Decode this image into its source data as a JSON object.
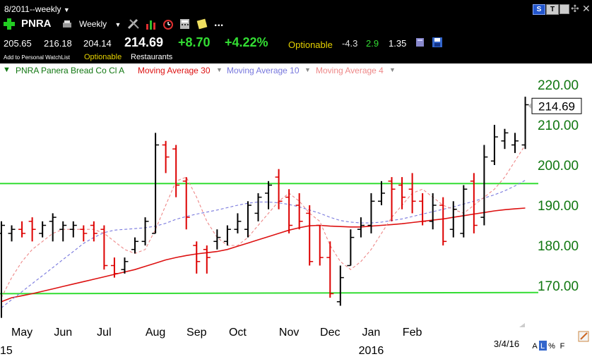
{
  "window": {
    "title": "8/2011--weekly",
    "controls": {
      "s_label": "S",
      "t_label": "T"
    }
  },
  "toolbar": {
    "symbol": "PNRA",
    "period": "Weekly",
    "more_label": "..."
  },
  "quote": {
    "open": "205.65",
    "high": "216.18",
    "low": "204.14",
    "last": "214.69",
    "change": "+8.70",
    "change_pct": "+4.22%",
    "optionable": "Optionable",
    "val1": "-4.3",
    "val2": "2.9",
    "val3": "1.35",
    "watchlist_label": "Add to Personal WatchList",
    "optionable2": "Optionable",
    "industry": "Restaurants"
  },
  "legend": {
    "series1": "PNRA Panera Bread Co Cl A",
    "series2": "Moving Average 30",
    "series3": "Moving Average 10",
    "series4": "Moving Average 4"
  },
  "colors": {
    "up": "#000000",
    "down": "#dd0000",
    "ma30": "#dd1111",
    "ma10": "#7777dd",
    "ma4": "#ee8888",
    "hline": "#33dd33",
    "yaxis": "#117711",
    "positive": "#33dd33",
    "optionable": "#e6d200"
  },
  "chart_data": {
    "type": "line",
    "title": "PNRA Panera Bread Co Cl A",
    "xlabel": "",
    "ylabel": "",
    "ylim": [
      163,
      222
    ],
    "yticks": [
      170,
      180,
      190,
      200,
      210,
      220
    ],
    "ytick_labels": [
      "170.00",
      "180.00",
      "190.00",
      "200.00",
      "210.00",
      "220.00"
    ],
    "last_price_label": "214.69",
    "x_month_labels": [
      {
        "label": "May",
        "week": 2
      },
      {
        "label": "Jun",
        "week": 6
      },
      {
        "label": "Jul",
        "week": 10
      },
      {
        "label": "Aug",
        "week": 15
      },
      {
        "label": "Sep",
        "week": 19
      },
      {
        "label": "Oct",
        "week": 23
      },
      {
        "label": "Nov",
        "week": 28
      },
      {
        "label": "Dec",
        "week": 32
      },
      {
        "label": "Jan",
        "week": 36
      },
      {
        "label": "Feb",
        "week": 40
      }
    ],
    "x_year_labels": [
      {
        "label": "15",
        "week": 0
      },
      {
        "label": "2016",
        "week": 36
      }
    ],
    "x_end_label": "3/4/16",
    "ohlc": [
      {
        "open": 183,
        "high": 186,
        "low": 162,
        "close": 185
      },
      {
        "open": 183,
        "high": 185,
        "low": 181,
        "close": 184
      },
      {
        "open": 184,
        "high": 186,
        "low": 182,
        "close": 183
      },
      {
        "open": 186,
        "high": 187,
        "low": 181,
        "close": 184
      },
      {
        "open": 183,
        "high": 186,
        "low": 182,
        "close": 185
      },
      {
        "open": 186,
        "high": 188,
        "low": 181,
        "close": 187
      },
      {
        "open": 184,
        "high": 186,
        "low": 181,
        "close": 185
      },
      {
        "open": 184,
        "high": 186,
        "low": 182,
        "close": 185
      },
      {
        "open": 184,
        "high": 185,
        "low": 181,
        "close": 183
      },
      {
        "open": 185,
        "high": 186,
        "low": 181,
        "close": 183
      },
      {
        "open": 184,
        "high": 185,
        "low": 174,
        "close": 175
      },
      {
        "open": 175,
        "high": 177,
        "low": 172,
        "close": 173
      },
      {
        "open": 174,
        "high": 177,
        "low": 173,
        "close": 176
      },
      {
        "open": 179,
        "high": 182,
        "low": 178,
        "close": 181
      },
      {
        "open": 181,
        "high": 187,
        "low": 180,
        "close": 186
      },
      {
        "open": 183,
        "high": 208,
        "low": 183,
        "close": 205
      },
      {
        "open": 205,
        "high": 206,
        "low": 198,
        "close": 202
      },
      {
        "open": 204,
        "high": 205,
        "low": 192,
        "close": 195
      },
      {
        "open": 196,
        "high": 197,
        "low": 184,
        "close": 187
      },
      {
        "open": 180,
        "high": 181,
        "low": 173,
        "close": 176
      },
      {
        "open": 179,
        "high": 180,
        "low": 173,
        "close": 177
      },
      {
        "open": 181,
        "high": 184,
        "low": 179,
        "close": 182
      },
      {
        "open": 181,
        "high": 185,
        "low": 180,
        "close": 184
      },
      {
        "open": 184,
        "high": 188,
        "low": 183,
        "close": 186
      },
      {
        "open": 184,
        "high": 191,
        "low": 182,
        "close": 190
      },
      {
        "open": 188,
        "high": 193,
        "low": 186,
        "close": 192
      },
      {
        "open": 193,
        "high": 196,
        "low": 189,
        "close": 195
      },
      {
        "open": 197,
        "high": 199,
        "low": 189,
        "close": 191
      },
      {
        "open": 192,
        "high": 194,
        "low": 183,
        "close": 185
      },
      {
        "open": 190,
        "high": 193,
        "low": 184,
        "close": 186
      },
      {
        "open": 188,
        "high": 190,
        "low": 175,
        "close": 176
      },
      {
        "open": 185,
        "high": 185,
        "low": 175,
        "close": 177
      },
      {
        "open": 177,
        "high": 181,
        "low": 167,
        "close": 168
      },
      {
        "open": 166,
        "high": 175,
        "low": 165,
        "close": 172
      },
      {
        "open": 175,
        "high": 184,
        "low": 175,
        "close": 182
      },
      {
        "open": 184,
        "high": 187,
        "low": 182,
        "close": 185
      },
      {
        "open": 185,
        "high": 193,
        "low": 183,
        "close": 191
      },
      {
        "open": 191,
        "high": 196,
        "low": 190,
        "close": 193
      },
      {
        "open": 196,
        "high": 197,
        "low": 186,
        "close": 194
      },
      {
        "open": 195,
        "high": 197,
        "low": 189,
        "close": 192
      },
      {
        "open": 194,
        "high": 198,
        "low": 188,
        "close": 191
      },
      {
        "open": 191,
        "high": 193,
        "low": 185,
        "close": 186
      },
      {
        "open": 186,
        "high": 193,
        "low": 184,
        "close": 190
      },
      {
        "open": 190,
        "high": 192,
        "low": 180,
        "close": 181
      },
      {
        "open": 184,
        "high": 191,
        "low": 182,
        "close": 189
      },
      {
        "open": 183,
        "high": 195,
        "low": 182,
        "close": 194
      },
      {
        "open": 196,
        "high": 198,
        "low": 183,
        "close": 185
      },
      {
        "open": 187,
        "high": 205,
        "low": 185,
        "close": 202
      },
      {
        "open": 201,
        "high": 210,
        "low": 200,
        "close": 207
      },
      {
        "open": 206,
        "high": 209,
        "low": 204,
        "close": 208
      },
      {
        "open": 205,
        "high": 208,
        "low": 203,
        "close": 206
      },
      {
        "open": 205,
        "high": 217,
        "low": 204,
        "close": 215
      }
    ],
    "series": [
      {
        "name": "Moving Average 30",
        "values": [
          166,
          167,
          167.5,
          168,
          168.6,
          169.2,
          169.8,
          170.4,
          171,
          171.6,
          172.2,
          172.8,
          173.4,
          174,
          174.8,
          175.6,
          176.4,
          177.0,
          177.5,
          177.9,
          178.2,
          178.5,
          179.0,
          179.8,
          180.6,
          181.4,
          182.2,
          183.0,
          183.8,
          184.4,
          184.9,
          185.0,
          184.8,
          184.7,
          184.6,
          184.6,
          184.8,
          185.0,
          185.2,
          185.4,
          185.7,
          186.0,
          186.3,
          186.6,
          187.0,
          187.4,
          187.8,
          188.2,
          188.6,
          188.9,
          189.1,
          189.3
        ]
      },
      {
        "name": "Moving Average 10",
        "values": [
          164.5,
          166.5,
          168.5,
          170.5,
          172.5,
          174.5,
          176.5,
          178.5,
          180.5,
          182.0,
          183.2,
          183.8,
          184.0,
          184.2,
          184.4,
          184.8,
          185.5,
          186.5,
          187.2,
          187.8,
          188.3,
          188.8,
          189.4,
          190.0,
          190.5,
          190.8,
          190.8,
          190.6,
          190.2,
          189.6,
          188.8,
          188.0,
          187.0,
          186.2,
          185.8,
          185.6,
          185.6,
          185.8,
          186.2,
          186.6,
          187.2,
          187.8,
          188.4,
          189.0,
          189.6,
          190.3,
          191.0,
          191.8,
          192.6,
          193.6,
          194.8,
          196.2
        ]
      },
      {
        "name": "Moving Average 4",
        "values": [
          167,
          172,
          176,
          179,
          181,
          183,
          184,
          184,
          184,
          184,
          183,
          181,
          179,
          178,
          179,
          184,
          190,
          196,
          197,
          192,
          186,
          182,
          180,
          180,
          182,
          185,
          188,
          191,
          193,
          191,
          188,
          186,
          180,
          176,
          174,
          176,
          179,
          183,
          187,
          190,
          193,
          194,
          192,
          190,
          189,
          188,
          190,
          192,
          194,
          197,
          201,
          205
        ]
      },
      {
        "name": "Support line",
        "values": [
          168.0,
          168.3
        ]
      },
      {
        "name": "Resistance line",
        "values": [
          195.4,
          195.4
        ]
      }
    ],
    "grid": false
  }
}
